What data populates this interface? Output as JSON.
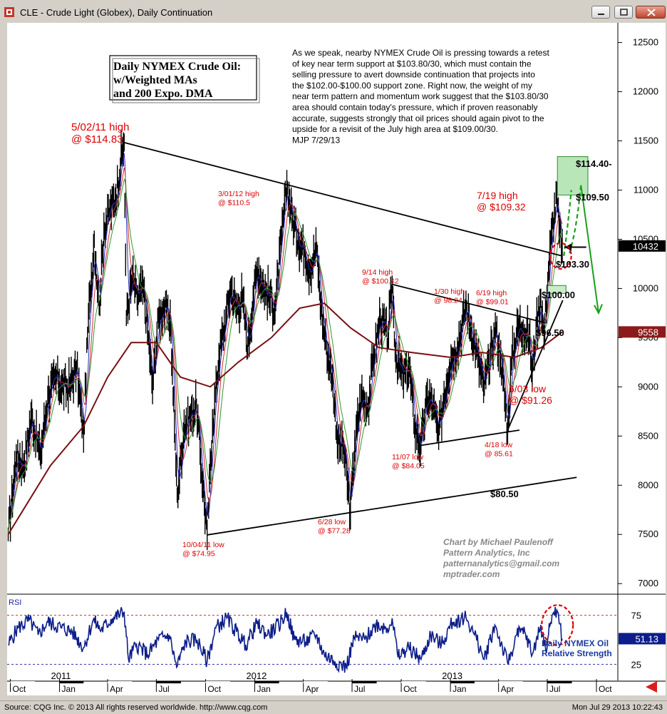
{
  "window": {
    "title": "CLE - Crude Light (Globex), Daily Continuation",
    "buttons": [
      "minimize",
      "restore",
      "close"
    ]
  },
  "status_bar": {
    "copyright": "Source: CQG Inc. © 2013 All rights reserved worldwide. http://www.cqg.com",
    "timestamp": "Mon Jul 29 2013 10:22:43"
  },
  "chart_data": [
    {
      "type": "line",
      "title": "Daily NYMEX Crude Oil:\nw/Weighted MAs\nand 200 Expo. DMA",
      "commentary": [
        "As we speak, nearby NYMEX Crude Oil is pressing towards a retest",
        "of key near term support at $103.80/30, which must contain the",
        "selling pressure to avert downside continuation that projects into",
        "the $102.00-$100.00 support zone.  Right now, the weight of my",
        "near term pattern and momentum work suggest that the $103.80/30",
        "area should contain today's pressure, which if proven reasonably",
        "accurate, suggests strongly that oil prices should again pivot to the",
        "upside for a revisit of the July high area at $109.00/30.",
        "MJP 7/29/13"
      ],
      "credit": [
        "Chart by Michael Paulenoff",
        "Pattern Analytics, Inc",
        "patternanalytics@gmail.com",
        "mptrader.com"
      ],
      "y_ticks": [
        12500,
        12000,
        11500,
        11000,
        10500,
        10000,
        9500,
        9000,
        8500,
        8000,
        7500,
        7000
      ],
      "y_tick_labels": [
        "12500",
        "12000",
        "11500",
        "11000",
        "10500",
        "10000",
        "9500",
        "9000",
        "8500",
        "8000",
        "7500",
        "7000"
      ],
      "ylim": [
        6900,
        12700
      ],
      "x_month_labels": [
        "Oct",
        "Jan",
        "Apr",
        "Jul",
        "Oct",
        "Jan",
        "Apr",
        "Jul",
        "Oct",
        "Jan",
        "Apr",
        "Jul",
        "Oct"
      ],
      "x_month_dates": [
        "2010-10-01",
        "2011-01-01",
        "2011-04-01",
        "2011-07-01",
        "2011-10-01",
        "2012-01-01",
        "2012-04-01",
        "2012-07-01",
        "2012-10-01",
        "2013-01-01",
        "2013-04-01",
        "2013-07-01",
        "2013-10-01"
      ],
      "x_year_labels": [
        "2011",
        "2012",
        "2013"
      ],
      "x_year_dates": [
        "2011-01-01",
        "2012-01-01",
        "2013-01-01"
      ],
      "xlim": [
        "2010-09-25",
        "2013-11-10"
      ],
      "last_price_label": "10432",
      "last_price": 10432,
      "ema_label": "9558",
      "ema_value": 9558,
      "price_series": [
        [
          "2010-09-27",
          7500
        ],
        [
          "2010-10-12",
          8300
        ],
        [
          "2010-10-26",
          8200
        ],
        [
          "2010-11-10",
          8700
        ],
        [
          "2010-11-26",
          8300
        ],
        [
          "2010-12-10",
          8900
        ],
        [
          "2010-12-27",
          9100
        ],
        [
          "2011-01-05",
          9000
        ],
        [
          "2011-01-20",
          9000
        ],
        [
          "2011-02-02",
          9200
        ],
        [
          "2011-02-15",
          8500
        ],
        [
          "2011-02-24",
          9700
        ],
        [
          "2011-03-07",
          10500
        ],
        [
          "2011-03-16",
          9800
        ],
        [
          "2011-03-25",
          10600
        ],
        [
          "2011-04-05",
          10800
        ],
        [
          "2011-04-15",
          10900
        ],
        [
          "2011-04-29",
          11400
        ],
        [
          "2011-05-02",
          11483
        ],
        [
          "2011-05-06",
          9700
        ],
        [
          "2011-05-17",
          10100
        ],
        [
          "2011-05-26",
          9900
        ],
        [
          "2011-06-07",
          10000
        ],
        [
          "2011-06-16",
          9500
        ],
        [
          "2011-06-24",
          9000
        ],
        [
          "2011-07-05",
          9700
        ],
        [
          "2011-07-14",
          9800
        ],
        [
          "2011-07-27",
          9700
        ],
        [
          "2011-08-04",
          8600
        ],
        [
          "2011-08-09",
          7900
        ],
        [
          "2011-08-22",
          8600
        ],
        [
          "2011-09-02",
          8700
        ],
        [
          "2011-09-14",
          8800
        ],
        [
          "2011-09-26",
          8000
        ],
        [
          "2011-10-04",
          7495
        ],
        [
          "2011-10-14",
          8600
        ],
        [
          "2011-10-26",
          9300
        ],
        [
          "2011-11-08",
          9700
        ],
        [
          "2011-11-17",
          10000
        ],
        [
          "2011-11-28",
          9800
        ],
        [
          "2011-12-09",
          9900
        ],
        [
          "2011-12-19",
          9400
        ],
        [
          "2011-12-29",
          9900
        ],
        [
          "2012-01-06",
          10200
        ],
        [
          "2012-01-18",
          10000
        ],
        [
          "2012-01-30",
          9900
        ],
        [
          "2012-02-08",
          9800
        ],
        [
          "2012-02-20",
          10500
        ],
        [
          "2012-03-01",
          11050
        ],
        [
          "2012-03-12",
          10700
        ],
        [
          "2012-03-22",
          10500
        ],
        [
          "2012-04-03",
          10400
        ],
        [
          "2012-04-13",
          10200
        ],
        [
          "2012-04-26",
          10400
        ],
        [
          "2012-05-04",
          9800
        ],
        [
          "2012-05-14",
          9400
        ],
        [
          "2012-05-25",
          9100
        ],
        [
          "2012-06-05",
          8400
        ],
        [
          "2012-06-15",
          8400
        ],
        [
          "2012-06-28",
          7728
        ],
        [
          "2012-07-06",
          8400
        ],
        [
          "2012-07-18",
          8900
        ],
        [
          "2012-07-31",
          8800
        ],
        [
          "2012-08-10",
          9300
        ],
        [
          "2012-08-23",
          9700
        ],
        [
          "2012-09-06",
          9500
        ],
        [
          "2012-09-14",
          10042
        ],
        [
          "2012-09-21",
          9300
        ],
        [
          "2012-10-04",
          9100
        ],
        [
          "2012-10-16",
          9200
        ],
        [
          "2012-10-26",
          8600
        ],
        [
          "2012-11-07",
          8405
        ],
        [
          "2012-11-19",
          8900
        ],
        [
          "2012-11-30",
          8800
        ],
        [
          "2012-12-10",
          8500
        ],
        [
          "2012-12-20",
          8900
        ],
        [
          "2013-01-02",
          9300
        ],
        [
          "2013-01-14",
          9400
        ],
        [
          "2013-01-30",
          9824
        ],
        [
          "2013-02-08",
          9600
        ],
        [
          "2013-02-21",
          9300
        ],
        [
          "2013-03-04",
          9000
        ],
        [
          "2013-03-14",
          9200
        ],
        [
          "2013-03-26",
          9600
        ],
        [
          "2013-04-05",
          9300
        ],
        [
          "2013-04-18",
          8561
        ],
        [
          "2013-04-26",
          9300
        ],
        [
          "2013-05-07",
          9600
        ],
        [
          "2013-05-17",
          9600
        ],
        [
          "2013-05-28",
          9500
        ],
        [
          "2013-06-03",
          9126
        ],
        [
          "2013-06-10",
          9600
        ],
        [
          "2013-06-19",
          9901
        ],
        [
          "2013-06-25",
          9500
        ],
        [
          "2013-07-02",
          10100
        ],
        [
          "2013-07-10",
          10600
        ],
        [
          "2013-07-19",
          10932
        ],
        [
          "2013-07-23",
          10600
        ],
        [
          "2013-07-29",
          10432
        ]
      ],
      "ema200_series": [
        [
          "2010-09-27",
          7500
        ],
        [
          "2010-12-15",
          8200
        ],
        [
          "2011-02-15",
          8600
        ],
        [
          "2011-04-01",
          9100
        ],
        [
          "2011-05-15",
          9450
        ],
        [
          "2011-07-01",
          9450
        ],
        [
          "2011-08-15",
          9100
        ],
        [
          "2011-10-10",
          9000
        ],
        [
          "2011-12-01",
          9250
        ],
        [
          "2012-02-01",
          9500
        ],
        [
          "2012-03-25",
          9800
        ],
        [
          "2012-05-10",
          9850
        ],
        [
          "2012-06-28",
          9600
        ],
        [
          "2012-08-20",
          9400
        ],
        [
          "2012-10-20",
          9350
        ],
        [
          "2013-01-01",
          9300
        ],
        [
          "2013-03-01",
          9350
        ],
        [
          "2013-05-01",
          9300
        ],
        [
          "2013-06-20",
          9400
        ],
        [
          "2013-07-29",
          9558
        ]
      ],
      "trendlines": [
        {
          "name": "upper-resistance",
          "from": [
            "2011-05-02",
            11483
          ],
          "to": [
            "2013-07-29",
            10330
          ]
        },
        {
          "name": "lower-support",
          "from": [
            "2011-10-04",
            7495
          ],
          "to": [
            "2013-08-25",
            8080
          ]
        },
        {
          "name": "2012-13-resistance",
          "from": [
            "2012-09-14",
            10042
          ],
          "to": [
            "2013-06-28",
            9650
          ]
        },
        {
          "name": "nov-apr-support",
          "from": [
            "2012-11-07",
            8405
          ],
          "to": [
            "2013-05-10",
            8560
          ]
        },
        {
          "name": "apr-rising-support",
          "from": [
            "2013-04-18",
            8561
          ],
          "to": [
            "2013-07-30",
            9880
          ]
        }
      ],
      "annotations": [
        {
          "text": "5/02/11 high\n@ $114.83",
          "color": "#dd0000",
          "size": "large"
        },
        {
          "text": "3/01/12 high\n@ $110.5",
          "color": "#dd0000",
          "size": "small"
        },
        {
          "text": "7/19 high\n@ $109.32",
          "color": "#dd0000",
          "size": "large"
        },
        {
          "text": "9/14 high\n@ $100.42",
          "color": "#dd0000",
          "size": "small"
        },
        {
          "text": "1/30 high\n@ 98.24",
          "color": "#dd0000",
          "size": "small"
        },
        {
          "text": "6/19 high\n@ $99.01",
          "color": "#dd0000",
          "size": "small"
        },
        {
          "text": "6/03 low\n@ $91.26",
          "color": "#dd0000",
          "size": "large"
        },
        {
          "text": "11/07 low\n@ $84.05",
          "color": "#dd0000",
          "size": "small"
        },
        {
          "text": "4/18 low\n@ 85.61",
          "color": "#dd0000",
          "size": "small"
        },
        {
          "text": "6/28 low\n@ $77.28",
          "color": "#dd0000",
          "size": "small"
        },
        {
          "text": "10/04/11 low\n@ $74.95",
          "color": "#dd0000",
          "size": "small"
        }
      ],
      "level_labels": [
        "$114.40-",
        "$109.50",
        "$103.30",
        "$100.00",
        "$96.50",
        "$80.50"
      ],
      "level_values": [
        11440,
        10950,
        10330,
        10000,
        9650,
        8050
      ],
      "target_zone": {
        "low": 10950,
        "high": 11340
      },
      "support_zone": {
        "low": 9950,
        "high": 10030
      }
    },
    {
      "type": "line",
      "title": "RSI",
      "ylim": [
        10,
        95
      ],
      "y_tick_labels": [
        "75",
        "25"
      ],
      "y_ticks": [
        75,
        25
      ],
      "overbought": 75,
      "oversold": 25,
      "last_value_label": "51.13",
      "last_value": 51.13,
      "caption": "Daily NYMEX Oil\nRelative Strength",
      "rsi_series": [
        [
          "2010-09-27",
          45
        ],
        [
          "2010-10-15",
          62
        ],
        [
          "2010-11-05",
          70
        ],
        [
          "2010-11-22",
          55
        ],
        [
          "2010-12-10",
          68
        ],
        [
          "2011-01-05",
          62
        ],
        [
          "2011-01-25",
          58
        ],
        [
          "2011-02-15",
          42
        ],
        [
          "2011-03-05",
          70
        ],
        [
          "2011-03-20",
          60
        ],
        [
          "2011-04-10",
          72
        ],
        [
          "2011-05-02",
          78
        ],
        [
          "2011-05-10",
          30
        ],
        [
          "2011-05-25",
          45
        ],
        [
          "2011-06-15",
          35
        ],
        [
          "2011-07-05",
          50
        ],
        [
          "2011-07-25",
          55
        ],
        [
          "2011-08-08",
          22
        ],
        [
          "2011-08-25",
          48
        ],
        [
          "2011-09-15",
          50
        ],
        [
          "2011-10-04",
          28
        ],
        [
          "2011-10-20",
          62
        ],
        [
          "2011-11-10",
          72
        ],
        [
          "2011-11-28",
          58
        ],
        [
          "2011-12-15",
          45
        ],
        [
          "2012-01-05",
          66
        ],
        [
          "2012-01-25",
          55
        ],
        [
          "2012-02-15",
          65
        ],
        [
          "2012-03-01",
          78
        ],
        [
          "2012-03-15",
          50
        ],
        [
          "2012-04-05",
          48
        ],
        [
          "2012-04-25",
          55
        ],
        [
          "2012-05-10",
          35
        ],
        [
          "2012-05-30",
          28
        ],
        [
          "2012-06-20",
          22
        ],
        [
          "2012-07-05",
          52
        ],
        [
          "2012-07-25",
          50
        ],
        [
          "2012-08-15",
          66
        ],
        [
          "2012-09-05",
          62
        ],
        [
          "2012-09-14",
          72
        ],
        [
          "2012-09-25",
          32
        ],
        [
          "2012-10-15",
          42
        ],
        [
          "2012-11-07",
          30
        ],
        [
          "2012-11-25",
          55
        ],
        [
          "2012-12-15",
          45
        ],
        [
          "2013-01-05",
          68
        ],
        [
          "2013-01-30",
          73
        ],
        [
          "2013-02-15",
          55
        ],
        [
          "2013-03-05",
          30
        ],
        [
          "2013-03-25",
          65
        ],
        [
          "2013-04-18",
          26
        ],
        [
          "2013-05-05",
          55
        ],
        [
          "2013-05-20",
          58
        ],
        [
          "2013-06-03",
          35
        ],
        [
          "2013-06-19",
          65
        ],
        [
          "2013-06-28",
          40
        ],
        [
          "2013-07-10",
          75
        ],
        [
          "2013-07-19",
          80
        ],
        [
          "2013-07-29",
          51
        ]
      ]
    }
  ]
}
